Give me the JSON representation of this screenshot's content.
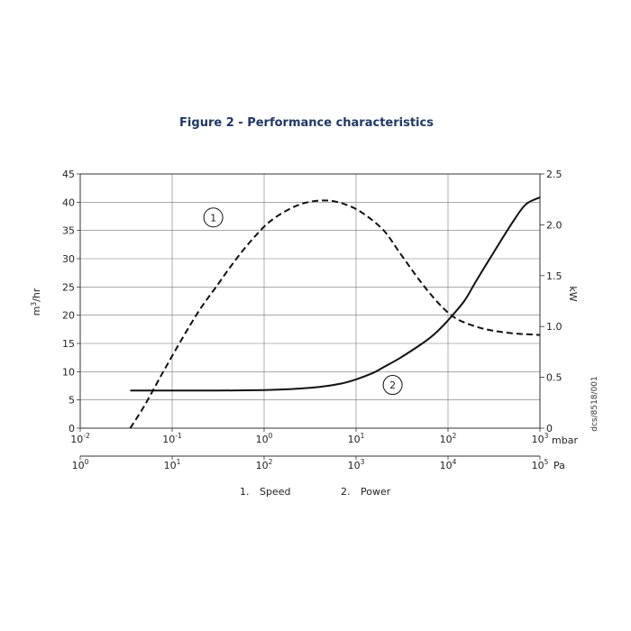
{
  "chart_data": {
    "type": "line",
    "title": "Figure 2 - Performance characteristics",
    "ylabel_left": {
      "base": "m",
      "sup": "3",
      "rest": "/hr"
    },
    "ylabel_right": "kW",
    "x_unit_top": "mbar",
    "x_unit_bottom": "Pa",
    "x_scale": "log",
    "xlim_mbar": [
      0.01,
      1000
    ],
    "ylim_left": [
      0,
      45
    ],
    "ylim_right": [
      0,
      2.5
    ],
    "grid": true,
    "y_ticks_left": [
      "0",
      "5",
      "10",
      "15",
      "20",
      "25",
      "30",
      "35",
      "40",
      "45"
    ],
    "y_ticks_right": [
      "0",
      "0.5",
      "1.0",
      "1.5",
      "2.0",
      "2.5"
    ],
    "x_ticks_top": [
      {
        "base": "10",
        "exp": "-2"
      },
      {
        "base": "10",
        "exp": "-1"
      },
      {
        "base": "10",
        "exp": "0"
      },
      {
        "base": "10",
        "exp": "1"
      },
      {
        "base": "10",
        "exp": "2"
      },
      {
        "base": "10",
        "exp": "3"
      }
    ],
    "x_ticks_bottom": [
      {
        "base": "10",
        "exp": "0"
      },
      {
        "base": "10",
        "exp": "1"
      },
      {
        "base": "10",
        "exp": "2"
      },
      {
        "base": "10",
        "exp": "3"
      },
      {
        "base": "10",
        "exp": "4"
      },
      {
        "base": "10",
        "exp": "5"
      }
    ],
    "series": [
      {
        "marker": "1",
        "axis": "left",
        "style": "dashed",
        "x_mbar": [
          0.035,
          0.05,
          0.08,
          0.13,
          0.2,
          0.3,
          0.5,
          0.8,
          1.2,
          2,
          3,
          5,
          8,
          12,
          20,
          30,
          50,
          80,
          120,
          200,
          300,
          500,
          1000
        ],
        "y": [
          0,
          4,
          10,
          16,
          21,
          25,
          30,
          34,
          36.8,
          39,
          40,
          40.3,
          39.5,
          38,
          35,
          31,
          26,
          22,
          19.5,
          18,
          17.3,
          16.8,
          16.5
        ]
      },
      {
        "marker": "2",
        "axis": "right",
        "style": "solid",
        "x_mbar": [
          0.035,
          0.1,
          0.3,
          1,
          2,
          4,
          7,
          10,
          15,
          20,
          30,
          50,
          70,
          100,
          150,
          200,
          300,
          500,
          700,
          1000
        ],
        "y": [
          0.37,
          0.37,
          0.37,
          0.375,
          0.385,
          0.405,
          0.44,
          0.48,
          0.54,
          0.6,
          0.69,
          0.82,
          0.92,
          1.06,
          1.25,
          1.44,
          1.7,
          2.02,
          2.2,
          2.27
        ]
      }
    ],
    "legend": [
      {
        "num": "1.",
        "label": "Speed"
      },
      {
        "num": "2.",
        "label": "Power"
      }
    ],
    "doc_ref": "dcs/8518/001"
  }
}
